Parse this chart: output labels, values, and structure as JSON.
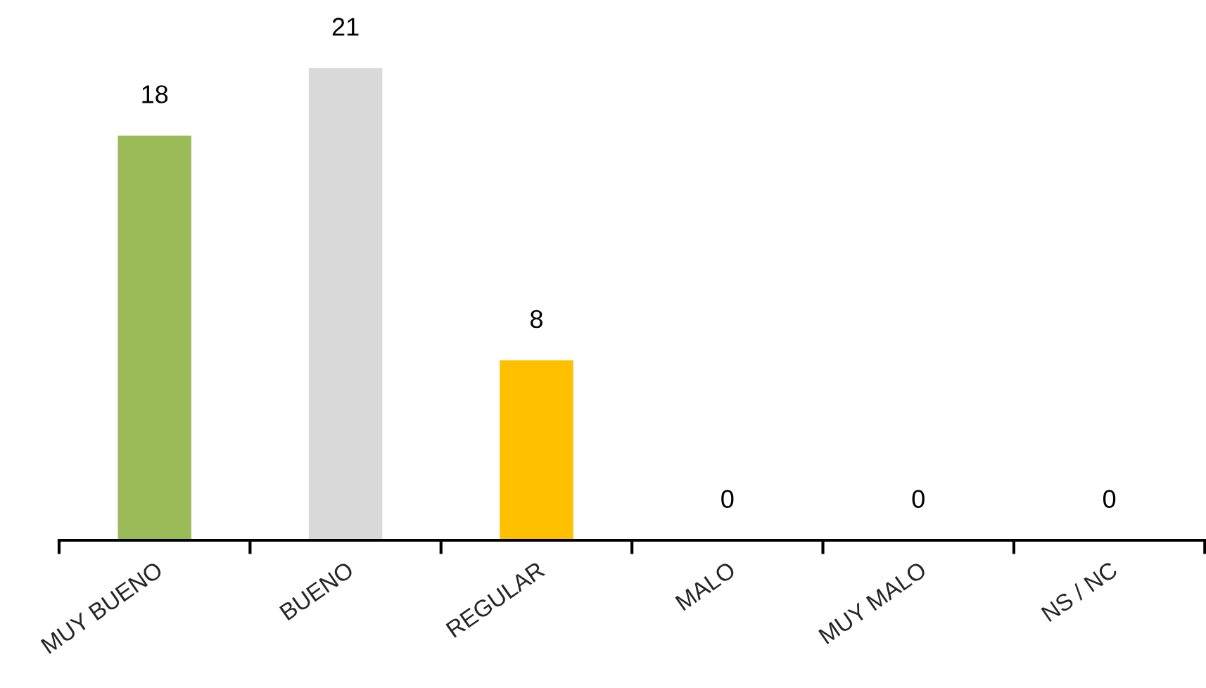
{
  "chart_data": {
    "type": "bar",
    "categories": [
      "MUY BUENO",
      "BUENO",
      "REGULAR",
      "MALO",
      "MUY MALO",
      "NS / NC"
    ],
    "values": [
      18,
      21,
      8,
      0,
      0,
      0
    ],
    "colors": [
      "#9bbb59",
      "#d9d9d9",
      "#ffc000",
      "#4f81bd",
      "#4f81bd",
      "#4f81bd"
    ],
    "data_labels": true,
    "grid": false,
    "legend": false,
    "tick_labels": "x"
  }
}
